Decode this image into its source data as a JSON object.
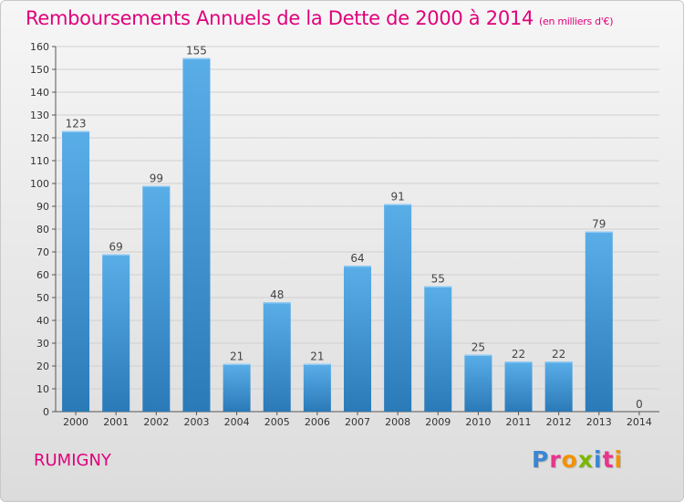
{
  "header": {
    "title": "Remboursements Annuels de la Dette de 2000 à 2014",
    "subtitle": "(en milliers d'€)"
  },
  "footer": {
    "city": "RUMIGNY",
    "logo_letters": [
      "P",
      "r",
      "o",
      "x",
      "i",
      "t",
      "i"
    ],
    "logo_colors": [
      "#3a86d4",
      "#e8348b",
      "#f39200",
      "#7ab800",
      "#3a86d4",
      "#e8348b",
      "#f39200"
    ]
  },
  "colors": {
    "bar_top": "#5aaee8",
    "bar_bottom": "#2a7ab8",
    "text_accent": "#e0007a",
    "grid": "#d0d0d0"
  },
  "chart_data": {
    "type": "bar",
    "title": "Remboursements Annuels de la Dette de 2000 à 2014",
    "subtitle": "(en milliers d'€)",
    "xlabel": "",
    "ylabel": "",
    "categories": [
      "2000",
      "2001",
      "2002",
      "2003",
      "2004",
      "2005",
      "2006",
      "2007",
      "2008",
      "2009",
      "2010",
      "2011",
      "2012",
      "2013",
      "2014"
    ],
    "values": [
      123,
      69,
      99,
      155,
      21,
      48,
      21,
      64,
      91,
      55,
      25,
      22,
      22,
      79,
      0
    ],
    "ylim": [
      0,
      160
    ],
    "yticks": [
      0,
      10,
      20,
      30,
      40,
      50,
      60,
      70,
      80,
      90,
      100,
      110,
      120,
      130,
      140,
      150,
      160
    ],
    "grid": true
  }
}
